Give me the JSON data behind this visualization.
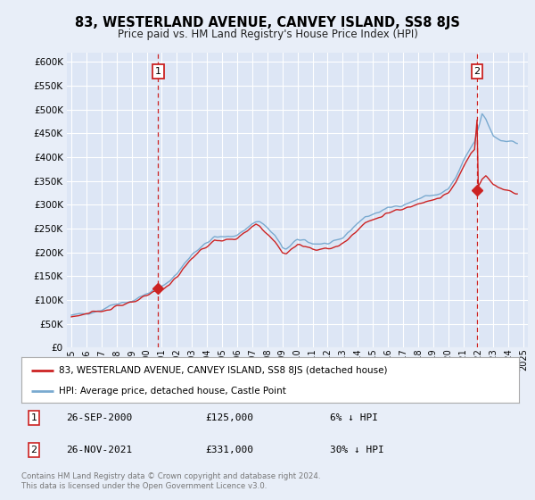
{
  "title": "83, WESTERLAND AVENUE, CANVEY ISLAND, SS8 8JS",
  "subtitle": "Price paid vs. HM Land Registry's House Price Index (HPI)",
  "ylim": [
    0,
    620000
  ],
  "xlim_start": 1994.7,
  "xlim_end": 2025.3,
  "background_color": "#e8eef8",
  "plot_bg_color": "#dde6f5",
  "grid_color": "#ffffff",
  "hpi_color": "#7aaad0",
  "price_color": "#cc2222",
  "marker1_year": 2000.75,
  "marker1_price": 125000,
  "marker2_year": 2021.92,
  "marker2_price": 331000,
  "legend_label_price": "83, WESTERLAND AVENUE, CANVEY ISLAND, SS8 8JS (detached house)",
  "legend_label_hpi": "HPI: Average price, detached house, Castle Point",
  "note1_label": "1",
  "note1_date": "26-SEP-2000",
  "note1_price": "£125,000",
  "note1_pct": "6% ↓ HPI",
  "note2_label": "2",
  "note2_date": "26-NOV-2021",
  "note2_price": "£331,000",
  "note2_pct": "30% ↓ HPI",
  "footer": "Contains HM Land Registry data © Crown copyright and database right 2024.\nThis data is licensed under the Open Government Licence v3.0."
}
